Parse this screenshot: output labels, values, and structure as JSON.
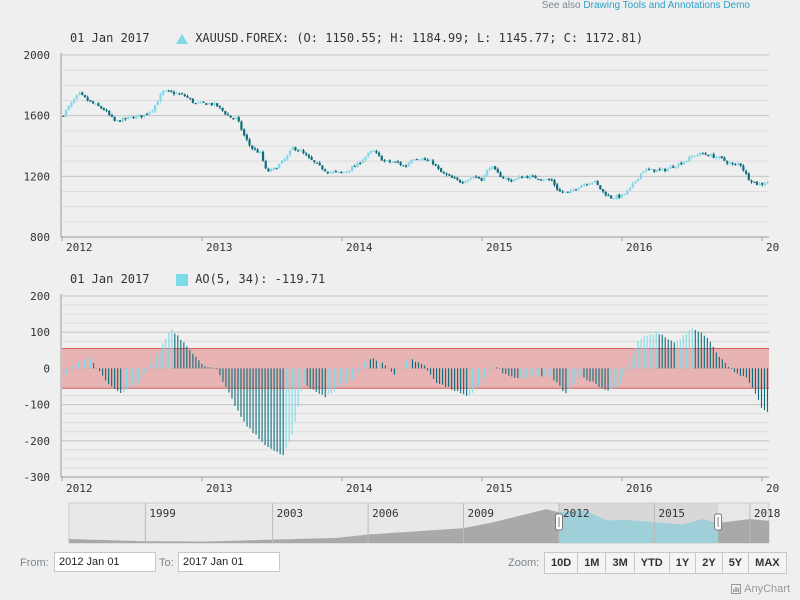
{
  "see_also": {
    "prefix": "See also",
    "link": "Drawing Tools and Annotations Demo"
  },
  "price_legend": {
    "date": "01 Jan 2017",
    "text": "XAUUSD.FOREX: (O: 1150.55; H: 1184.99; L: 1145.77; C: 1172.81)",
    "color": "#7fd9e8"
  },
  "ao_legend": {
    "date": "01 Jan 2017",
    "text": "AO(5, 34): -119.71",
    "color": "#7fd9e8"
  },
  "colors": {
    "rising": "#7fd9e8",
    "falling": "#0e6d7a",
    "band_fill": "#e6a8a8",
    "band_stroke": "#d06060",
    "scroller_fill": "#a9a9a9",
    "scroller_selected": "#9fcfd8"
  },
  "chart_data": [
    {
      "type": "candlestick",
      "series": [
        {
          "name": "XAUUSD.FOREX"
        }
      ],
      "ylim": [
        800,
        2000
      ],
      "yticks": [
        800,
        1200,
        1600,
        2000
      ],
      "xlim": [
        2012.0,
        2017.05
      ],
      "xtick_labels": [
        "2012",
        "2013",
        "2014",
        "2015",
        "2016",
        "20"
      ],
      "close_profile": [
        [
          2012.0,
          1595
        ],
        [
          2012.05,
          1660
        ],
        [
          2012.12,
          1745
        ],
        [
          2012.2,
          1690
        ],
        [
          2012.3,
          1640
        ],
        [
          2012.38,
          1560
        ],
        [
          2012.5,
          1590
        ],
        [
          2012.58,
          1600
        ],
        [
          2012.65,
          1645
        ],
        [
          2012.72,
          1760
        ],
        [
          2012.8,
          1750
        ],
        [
          2012.88,
          1730
        ],
        [
          2012.95,
          1680
        ],
        [
          2013.05,
          1680
        ],
        [
          2013.1,
          1670
        ],
        [
          2013.2,
          1590
        ],
        [
          2013.25,
          1580
        ],
        [
          2013.3,
          1470
        ],
        [
          2013.35,
          1390
        ],
        [
          2013.42,
          1350
        ],
        [
          2013.46,
          1230
        ],
        [
          2013.52,
          1250
        ],
        [
          2013.6,
          1320
        ],
        [
          2013.65,
          1390
        ],
        [
          2013.7,
          1370
        ],
        [
          2013.76,
          1320
        ],
        [
          2013.83,
          1270
        ],
        [
          2013.9,
          1230
        ],
        [
          2014.0,
          1220
        ],
        [
          2014.1,
          1270
        ],
        [
          2014.18,
          1340
        ],
        [
          2014.22,
          1370
        ],
        [
          2014.3,
          1300
        ],
        [
          2014.4,
          1290
        ],
        [
          2014.45,
          1260
        ],
        [
          2014.5,
          1320
        ],
        [
          2014.55,
          1320
        ],
        [
          2014.65,
          1290
        ],
        [
          2014.7,
          1230
        ],
        [
          2014.8,
          1180
        ],
        [
          2014.85,
          1165
        ],
        [
          2014.95,
          1200
        ],
        [
          2015.0,
          1180
        ],
        [
          2015.06,
          1270
        ],
        [
          2015.12,
          1210
        ],
        [
          2015.2,
          1170
        ],
        [
          2015.3,
          1200
        ],
        [
          2015.4,
          1190
        ],
        [
          2015.5,
          1170
        ],
        [
          2015.55,
          1100
        ],
        [
          2015.62,
          1090
        ],
        [
          2015.7,
          1140
        ],
        [
          2015.8,
          1170
        ],
        [
          2015.86,
          1100
        ],
        [
          2015.92,
          1060
        ],
        [
          2016.0,
          1070
        ],
        [
          2016.05,
          1110
        ],
        [
          2016.15,
          1240
        ],
        [
          2016.3,
          1240
        ],
        [
          2016.45,
          1300
        ],
        [
          2016.52,
          1340
        ],
        [
          2016.58,
          1350
        ],
        [
          2016.7,
          1320
        ],
        [
          2016.8,
          1270
        ],
        [
          2016.84,
          1290
        ],
        [
          2016.9,
          1190
        ],
        [
          2016.96,
          1150
        ],
        [
          2017.0,
          1150
        ],
        [
          2017.05,
          1170
        ]
      ]
    },
    {
      "type": "bar",
      "series": [
        {
          "name": "AO(5, 34)"
        }
      ],
      "ylim": [
        -300,
        200
      ],
      "yticks": [
        -300,
        -200,
        -100,
        0,
        100,
        200
      ],
      "xlim": [
        2012.0,
        2017.05
      ],
      "xtick_labels": [
        "2012",
        "2013",
        "2014",
        "2015",
        "2016",
        "20"
      ],
      "band": [
        -55,
        55
      ],
      "last_value": -119.71
    },
    {
      "type": "area",
      "role": "scroller",
      "xtick_labels": [
        "1999",
        "2003",
        "2006",
        "2009",
        "2012",
        "2015",
        "2018"
      ],
      "selected_range": [
        "2012 Jan 01",
        "2017 Jan 01"
      ]
    }
  ],
  "range_selector": {
    "from_label": "From:",
    "from_value": "2012 Jan 01",
    "to_label": "To:",
    "to_value": "2017 Jan 01"
  },
  "zoom": {
    "label": "Zoom:",
    "buttons": [
      "10D",
      "1M",
      "3M",
      "YTD",
      "1Y",
      "2Y",
      "5Y",
      "MAX"
    ]
  },
  "credits": {
    "text": "AnyChart",
    "icon": "anychart-logo-icon"
  }
}
